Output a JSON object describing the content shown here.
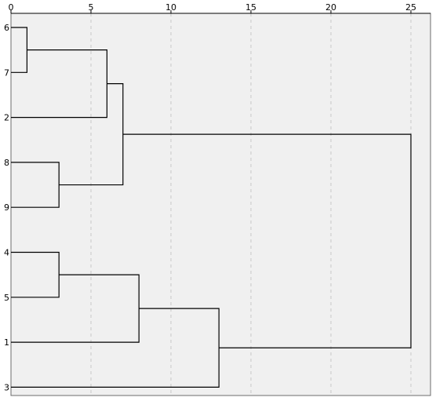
{
  "chart_data": {
    "type": "dendrogram",
    "title": "",
    "xlabel": "",
    "ylabel": "",
    "xlim": [
      0,
      25
    ],
    "x_ticks": [
      0,
      5,
      10,
      15,
      20,
      25
    ],
    "grid": "vertical dashed",
    "leaf_order": [
      "6",
      "7",
      "2",
      "8",
      "9",
      "4",
      "5",
      "1",
      "3"
    ],
    "merges": [
      {
        "id": "A",
        "children": [
          "6",
          "7"
        ],
        "height": 1
      },
      {
        "id": "B",
        "children": [
          "A",
          "2"
        ],
        "height": 6
      },
      {
        "id": "C",
        "children": [
          "8",
          "9"
        ],
        "height": 3
      },
      {
        "id": "D",
        "children": [
          "B",
          "C"
        ],
        "height": 7
      },
      {
        "id": "E",
        "children": [
          "4",
          "5"
        ],
        "height": 3
      },
      {
        "id": "F",
        "children": [
          "E",
          "1"
        ],
        "height": 8
      },
      {
        "id": "G",
        "children": [
          "F",
          "3"
        ],
        "height": 13
      },
      {
        "id": "H",
        "children": [
          "D",
          "G"
        ],
        "height": 25
      }
    ],
    "colors": {
      "background": "#ffffff",
      "plot_background": "#f0f0f0",
      "lines": "#000000",
      "grid": "#c8c8c8"
    }
  }
}
